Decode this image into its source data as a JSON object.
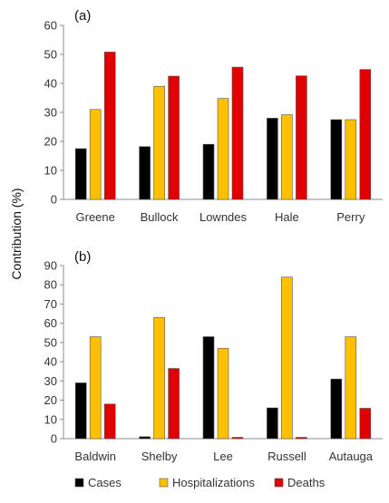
{
  "ylabel": "Contribution (%)",
  "colors": {
    "Cases": "#000000",
    "Hospitalizations": "#FFC000",
    "Deaths": "#E00000"
  },
  "legend": [
    {
      "name": "Cases",
      "color": "#000000"
    },
    {
      "name": "Hospitalizations",
      "color": "#FFC000"
    },
    {
      "name": "Deaths",
      "color": "#E00000"
    }
  ],
  "chart_data": [
    {
      "type": "bar",
      "panel_label": "(a)",
      "categories": [
        "Greene",
        "Bullock",
        "Lowndes",
        "Hale",
        "Perry"
      ],
      "series": [
        {
          "name": "Cases",
          "values": [
            17.5,
            18.2,
            19.0,
            28.0,
            27.5
          ]
        },
        {
          "name": "Hospitalizations",
          "values": [
            31.0,
            39.0,
            34.8,
            29.2,
            27.5
          ]
        },
        {
          "name": "Deaths",
          "values": [
            50.8,
            42.5,
            45.6,
            42.6,
            44.8
          ]
        }
      ],
      "ylim": [
        0,
        60
      ],
      "yticks": [
        0,
        10,
        20,
        30,
        40,
        50,
        60
      ],
      "grid": false
    },
    {
      "type": "bar",
      "panel_label": "(b)",
      "categories": [
        "Baldwin",
        "Shelby",
        "Lee",
        "Russell",
        "Autauga"
      ],
      "series": [
        {
          "name": "Cases",
          "values": [
            29.0,
            1.0,
            53.0,
            16.0,
            31.0
          ]
        },
        {
          "name": "Hospitalizations",
          "values": [
            53.0,
            63.0,
            47.0,
            84.0,
            53.0
          ]
        },
        {
          "name": "Deaths",
          "values": [
            18.0,
            36.5,
            0.7,
            0.7,
            15.8
          ]
        }
      ],
      "ylim": [
        0,
        90
      ],
      "yticks": [
        0,
        10,
        20,
        30,
        40,
        50,
        60,
        70,
        80,
        90
      ],
      "grid": false
    }
  ]
}
